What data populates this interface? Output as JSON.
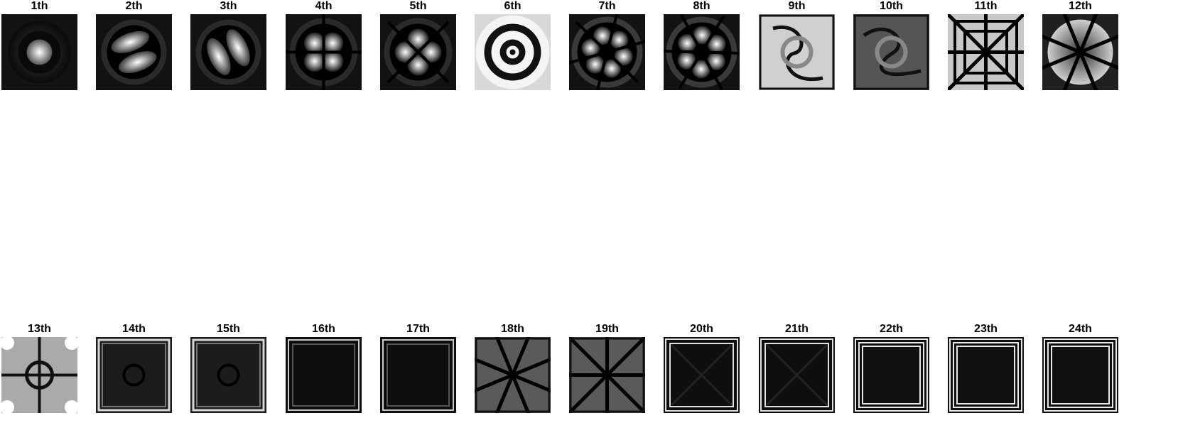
{
  "figure": {
    "background": "#ffffff",
    "title_color": "#000000",
    "panels": [
      {
        "title": "1th",
        "pattern": "central-spot-ring"
      },
      {
        "title": "2th",
        "pattern": "two-lobes-tilted-a"
      },
      {
        "title": "3th",
        "pattern": "two-lobes-tilted-b"
      },
      {
        "title": "4th",
        "pattern": "four-lobes-cross"
      },
      {
        "title": "5th",
        "pattern": "four-lobes-diagonal"
      },
      {
        "title": "6th",
        "pattern": "concentric-rings"
      },
      {
        "title": "7th",
        "pattern": "six-lobes-a"
      },
      {
        "title": "8th",
        "pattern": "six-lobes-b"
      },
      {
        "title": "9th",
        "pattern": "swirl-a"
      },
      {
        "title": "10th",
        "pattern": "swirl-b"
      },
      {
        "title": "11th",
        "pattern": "eight-spokes-square"
      },
      {
        "title": "12th",
        "pattern": "eight-spokes-ring"
      },
      {
        "title": "13th",
        "pattern": "ring-cross-corners"
      },
      {
        "title": "14th",
        "pattern": "dark-square-frame-a"
      },
      {
        "title": "15th",
        "pattern": "dark-square-frame-b"
      },
      {
        "title": "16th",
        "pattern": "dark-vertical-edges"
      },
      {
        "title": "17th",
        "pattern": "dark-horizontal-edges"
      },
      {
        "title": "18th",
        "pattern": "star-diagonals-a"
      },
      {
        "title": "19th",
        "pattern": "star-diagonals-b"
      },
      {
        "title": "20th",
        "pattern": "double-frame-a"
      },
      {
        "title": "21th",
        "pattern": "double-frame-b"
      },
      {
        "title": "22th",
        "pattern": "triple-frame-a"
      },
      {
        "title": "23th",
        "pattern": "triple-frame-b"
      },
      {
        "title": "24th",
        "pattern": "triple-frame-c"
      }
    ]
  }
}
